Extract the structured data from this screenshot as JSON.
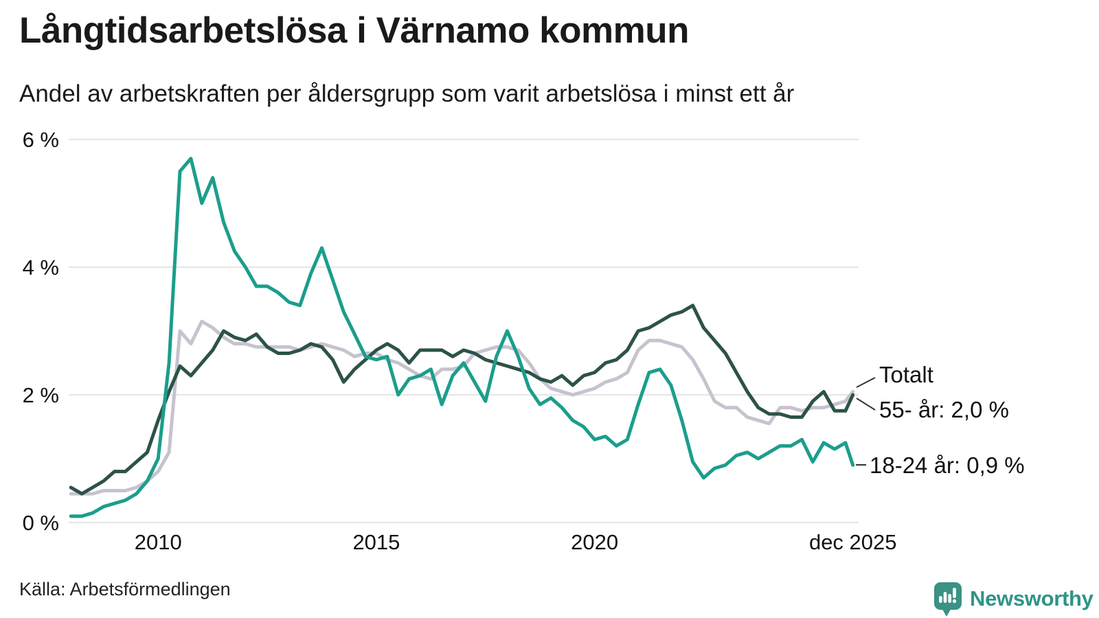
{
  "header": {
    "title": "Långtidsarbetslösa i Värnamo kommun",
    "subtitle": "Andel av arbetskraften per åldersgrupp som varit arbetslösa i minst ett år"
  },
  "chart_data": {
    "type": "line",
    "title": "Långtidsarbetslösa i Värnamo kommun",
    "subtitle": "Andel av arbetskraften per åldersgrupp som varit arbetslösa i minst ett år",
    "unit": "percent of labor force",
    "grid": "horizontal",
    "xlim": [
      2007.95,
      2026.05
    ],
    "ylim": [
      0,
      6
    ],
    "x_axis": {
      "ticks": [
        {
          "label": "2010",
          "year": 2010
        },
        {
          "label": "2015",
          "year": 2015
        },
        {
          "label": "2020",
          "year": 2020
        },
        {
          "label": "dec 2025",
          "year": 2025.92
        }
      ]
    },
    "y_axis": {
      "ticks": [
        {
          "value": 0,
          "label": "0 %"
        },
        {
          "value": 2,
          "label": "2 %"
        },
        {
          "value": 4,
          "label": "4 %"
        },
        {
          "value": 6,
          "label": "6 %"
        }
      ]
    },
    "x": [
      2008,
      2008.25,
      2008.5,
      2008.75,
      2009,
      2009.25,
      2009.5,
      2009.75,
      2010,
      2010.25,
      2010.5,
      2010.75,
      2011,
      2011.25,
      2011.5,
      2011.75,
      2012,
      2012.25,
      2012.5,
      2012.75,
      2013,
      2013.25,
      2013.5,
      2013.75,
      2014,
      2014.25,
      2014.5,
      2014.75,
      2015,
      2015.25,
      2015.5,
      2015.75,
      2016,
      2016.25,
      2016.5,
      2016.75,
      2017,
      2017.25,
      2017.5,
      2017.75,
      2018,
      2018.25,
      2018.5,
      2018.75,
      2019,
      2019.25,
      2019.5,
      2019.75,
      2020,
      2020.25,
      2020.5,
      2020.75,
      2021,
      2021.25,
      2021.5,
      2021.75,
      2022,
      2022.25,
      2022.5,
      2022.75,
      2023,
      2023.25,
      2023.5,
      2023.75,
      2024,
      2024.25,
      2024.5,
      2024.75,
      2025,
      2025.25,
      2025.5,
      2025.75,
      2025.92
    ],
    "series": [
      {
        "name": "Totalt",
        "color": "#c6c3cf",
        "values": [
          0.45,
          0.45,
          0.45,
          0.5,
          0.5,
          0.5,
          0.55,
          0.65,
          0.8,
          1.1,
          3.0,
          2.8,
          3.15,
          3.05,
          2.9,
          2.8,
          2.8,
          2.75,
          2.75,
          2.75,
          2.75,
          2.7,
          2.75,
          2.8,
          2.75,
          2.7,
          2.6,
          2.65,
          2.65,
          2.55,
          2.5,
          2.4,
          2.3,
          2.25,
          2.4,
          2.4,
          2.45,
          2.65,
          2.7,
          2.75,
          2.75,
          2.7,
          2.5,
          2.25,
          2.1,
          2.05,
          2.0,
          2.05,
          2.1,
          2.2,
          2.25,
          2.35,
          2.7,
          2.85,
          2.85,
          2.8,
          2.75,
          2.55,
          2.25,
          1.9,
          1.8,
          1.8,
          1.65,
          1.6,
          1.55,
          1.8,
          1.8,
          1.75,
          1.8,
          1.8,
          1.85,
          1.9,
          2.05
        ]
      },
      {
        "name": "55- år",
        "color": "#2d5247",
        "values": [
          0.55,
          0.45,
          0.55,
          0.65,
          0.8,
          0.8,
          0.95,
          1.1,
          1.6,
          2.05,
          2.45,
          2.3,
          2.5,
          2.7,
          3.0,
          2.9,
          2.85,
          2.95,
          2.75,
          2.65,
          2.65,
          2.7,
          2.8,
          2.75,
          2.55,
          2.2,
          2.4,
          2.55,
          2.7,
          2.8,
          2.7,
          2.5,
          2.7,
          2.7,
          2.7,
          2.6,
          2.7,
          2.65,
          2.55,
          2.5,
          2.45,
          2.4,
          2.35,
          2.25,
          2.2,
          2.3,
          2.15,
          2.3,
          2.35,
          2.5,
          2.55,
          2.7,
          3.0,
          3.05,
          3.15,
          3.25,
          3.3,
          3.4,
          3.05,
          2.85,
          2.65,
          2.35,
          2.05,
          1.8,
          1.7,
          1.7,
          1.65,
          1.65,
          1.9,
          2.05,
          1.75,
          1.75,
          2.0
        ]
      },
      {
        "name": "18-24 år",
        "color": "#1b9e8c",
        "values": [
          0.1,
          0.1,
          0.15,
          0.25,
          0.3,
          0.35,
          0.45,
          0.65,
          1.0,
          2.5,
          5.5,
          5.7,
          5.0,
          5.4,
          4.7,
          4.25,
          4.0,
          3.7,
          3.7,
          3.6,
          3.45,
          3.4,
          3.9,
          4.3,
          3.8,
          3.3,
          2.95,
          2.6,
          2.55,
          2.6,
          2.0,
          2.25,
          2.3,
          2.4,
          1.85,
          2.3,
          2.5,
          2.2,
          1.9,
          2.6,
          3.0,
          2.6,
          2.1,
          1.85,
          1.95,
          1.8,
          1.6,
          1.5,
          1.3,
          1.35,
          1.2,
          1.3,
          1.85,
          2.35,
          2.4,
          2.15,
          1.6,
          0.95,
          0.7,
          0.85,
          0.9,
          1.05,
          1.1,
          1.0,
          1.1,
          1.2,
          1.2,
          1.3,
          0.95,
          1.25,
          1.15,
          1.25,
          0.9
        ]
      }
    ],
    "annotations": [
      {
        "series": "Totalt",
        "text": "Totalt"
      },
      {
        "series": "55- år",
        "text": "55- år: 2,0 %"
      },
      {
        "series": "18-24 år",
        "text": "18-24 år: 0,9 %"
      }
    ],
    "legend_position": "right-of-line-ends"
  },
  "footer": {
    "source": "Källa: Arbetsförmedlingen",
    "brand": "Newsworthy"
  },
  "colors": {
    "accent_teal": "#1b9e8c",
    "dark_green": "#2d5247",
    "total_gray": "#c6c3cf",
    "gridline": "#e8e8e8",
    "text": "#1a1a1a",
    "brand_teal": "#2f9486",
    "logo_fill": "#3a9184"
  }
}
